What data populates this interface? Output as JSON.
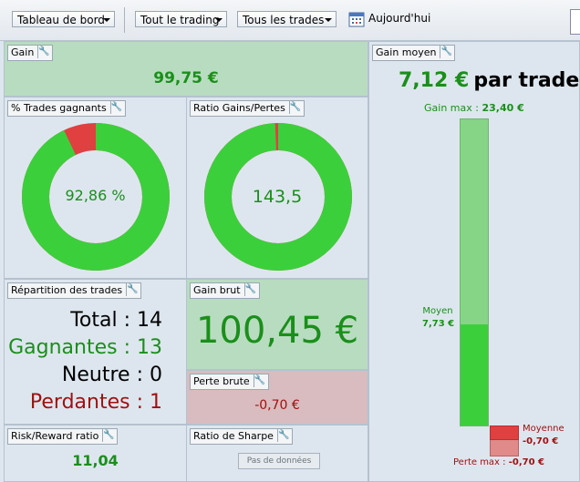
{
  "toolbar": {
    "dashboard": "Tableau de bord",
    "trading": "Tout le trading",
    "trades": "Tous les trades",
    "today": "Aujourd'hui"
  },
  "gain": {
    "title": "Gain",
    "value": "99,75 €"
  },
  "win_pct": {
    "title": "% Trades gagnants",
    "value": "92,86 %",
    "fraction": 0.9286
  },
  "ratio": {
    "title": "Ratio Gains/Pertes",
    "value": "143,5",
    "fraction": 0.993
  },
  "repartition": {
    "title": "Répartition des trades",
    "total_label": "Total :",
    "total": "14",
    "win_label": "Gagnantes :",
    "win": "13",
    "neutral_label": "Neutre :",
    "neutral": "0",
    "loss_label": "Perdantes :",
    "loss": "1"
  },
  "gross_gain": {
    "title": "Gain brut",
    "value": "100,45 €"
  },
  "gross_loss": {
    "title": "Perte brute",
    "value": "-0,70 €"
  },
  "risk_reward": {
    "title": "Risk/Reward ratio",
    "value": "11,04"
  },
  "sharpe": {
    "title": "Ratio de Sharpe",
    "button": "Pas de données"
  },
  "avg_gain": {
    "title": "Gain moyen",
    "value": "7,12 €",
    "suffix": "par trade",
    "max_label": "Gain max :",
    "max_value": "23,40 €",
    "avg_label": "Moyen",
    "avg_value": "7,73 €",
    "avg_fraction": 0.33,
    "loss_avg_label": "Moyenne",
    "loss_avg_value": "-0,70 €",
    "loss_max_label": "Perte max :",
    "loss_max_value": "-0,70 €"
  },
  "colors": {
    "green": "#3ccf3c",
    "red": "#e04040",
    "light_green": "#86d486"
  }
}
